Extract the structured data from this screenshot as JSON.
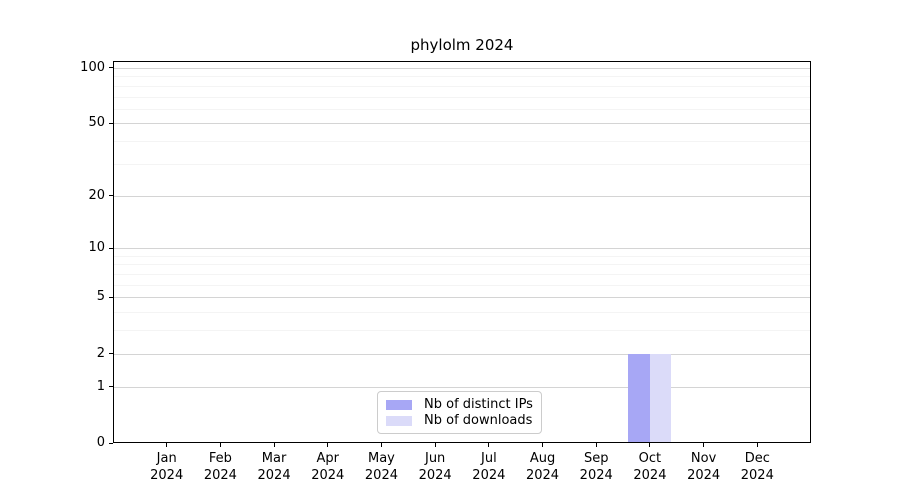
{
  "chart_data": {
    "type": "bar",
    "title": "phylolm 2024",
    "categories": [
      {
        "month": "Jan",
        "year": "2024"
      },
      {
        "month": "Feb",
        "year": "2024"
      },
      {
        "month": "Mar",
        "year": "2024"
      },
      {
        "month": "Apr",
        "year": "2024"
      },
      {
        "month": "May",
        "year": "2024"
      },
      {
        "month": "Jun",
        "year": "2024"
      },
      {
        "month": "Jul",
        "year": "2024"
      },
      {
        "month": "Aug",
        "year": "2024"
      },
      {
        "month": "Sep",
        "year": "2024"
      },
      {
        "month": "Oct",
        "year": "2024"
      },
      {
        "month": "Nov",
        "year": "2024"
      },
      {
        "month": "Dec",
        "year": "2024"
      }
    ],
    "series": [
      {
        "name": "Nb of distinct IPs",
        "color": "#a7a7f5",
        "values": [
          0,
          0,
          0,
          0,
          0,
          0,
          0,
          0,
          0,
          2,
          0,
          0
        ]
      },
      {
        "name": "Nb of downloads",
        "color": "#dbdbf9",
        "values": [
          0,
          0,
          0,
          0,
          0,
          0,
          0,
          0,
          0,
          2,
          0,
          0
        ]
      }
    ],
    "y_scale": "log1p",
    "ylim": [
      0,
      109
    ],
    "y_ticks": [
      0,
      1,
      2,
      5,
      10,
      20,
      50,
      100
    ],
    "y_minor_ticks": [
      3,
      4,
      6,
      7,
      8,
      9,
      30,
      40,
      60,
      70,
      80,
      90
    ],
    "grid": true,
    "legend_position": "lower center"
  },
  "colors": {
    "grid_major": "#d4d4d4",
    "grid_minor": "#f4f4f4",
    "spine": "#000000",
    "legend_border": "#cccccc",
    "background": "#ffffff"
  }
}
